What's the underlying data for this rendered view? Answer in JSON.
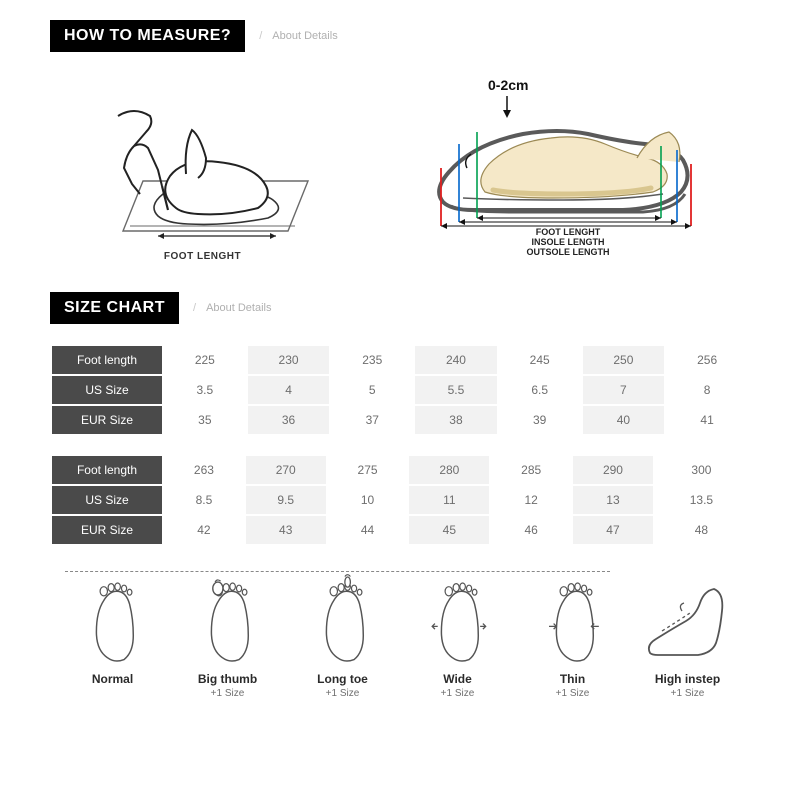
{
  "sections": {
    "measure": {
      "title": "HOW TO MEASURE?",
      "sub": "About Details"
    },
    "chart": {
      "title": "SIZE CHART",
      "sub": "About Details"
    }
  },
  "measure_diagram": {
    "left_label": "FOOT LENGHT",
    "right_top_label": "0-2cm",
    "right_labels": [
      "FOOT LENGHT",
      "INSOLE LENGTH",
      "OUTSOLE LENGTH"
    ],
    "colors": {
      "foot_fill": "#f5e8c8",
      "foot_shadow": "#d9c68f",
      "sole_line": "#5a5a5a",
      "inner_line": "#00a050",
      "mid_line": "#0066cc",
      "outer_line": "#e02020",
      "paper_bg": "#ffffff",
      "paper_line": "#6a6a6a"
    }
  },
  "size_tables": {
    "row_headers": [
      "Foot length",
      "US Size",
      "EUR Size"
    ],
    "table1": [
      [
        "225",
        "230",
        "235",
        "240",
        "245",
        "250",
        "256"
      ],
      [
        "3.5",
        "4",
        "5",
        "5.5",
        "6.5",
        "7",
        "8"
      ],
      [
        "35",
        "36",
        "37",
        "38",
        "39",
        "40",
        "41"
      ]
    ],
    "table2": [
      [
        "263",
        "270",
        "275",
        "280",
        "285",
        "290",
        "300"
      ],
      [
        "8.5",
        "9.5",
        "10",
        "11",
        "12",
        "13",
        "13.5"
      ],
      [
        "42",
        "43",
        "44",
        "45",
        "46",
        "47",
        "48"
      ]
    ],
    "header_bg": "#4a4a4a",
    "header_fg": "#ffffff",
    "cell_fg": "#6e6e6e",
    "cell_bg_alt": "#f2f2f2"
  },
  "foot_types": [
    {
      "name": "Normal",
      "note": ""
    },
    {
      "name": "Big thumb",
      "note": "+1 Size"
    },
    {
      "name": "Long toe",
      "note": "+1 Size"
    },
    {
      "name": "Wide",
      "note": "+1 Size"
    },
    {
      "name": "Thin",
      "note": "+1 Size"
    },
    {
      "name": "High instep",
      "note": "+1 Size"
    }
  ],
  "foot_outline_color": "#555555"
}
